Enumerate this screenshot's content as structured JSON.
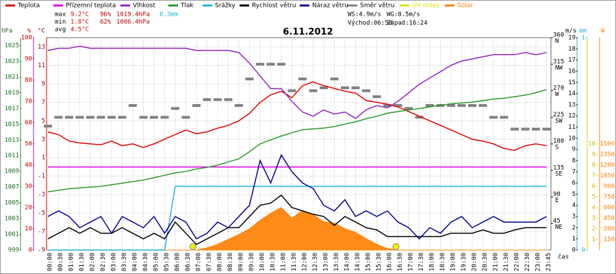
{
  "chart_data": {
    "type": "line",
    "title": "6.11.2012",
    "x_label": "čas",
    "categories": [
      "00:00",
      "00:30",
      "01:00",
      "01:30",
      "02:00",
      "02:30",
      "03:00",
      "03:30",
      "04:00",
      "04:30",
      "05:00",
      "05:30",
      "06:00",
      "06:30",
      "07:00",
      "07:30",
      "08:00",
      "08:30",
      "09:00",
      "09:30",
      "10:00",
      "10:30",
      "11:00",
      "11:30",
      "12:00",
      "12:30",
      "13:00",
      "13:30",
      "14:00",
      "14:30",
      "15:00",
      "15:30",
      "16:00",
      "16:30",
      "17:00",
      "17:30",
      "18:00",
      "18:30",
      "19:00",
      "19:30",
      "20:00",
      "20:30",
      "21:00",
      "21:30",
      "22:00",
      "22:30",
      "23:00",
      "23:45"
    ],
    "grid": true,
    "axes": {
      "hPa": {
        "unit": "hPa",
        "lim": [
          999,
          1026
        ],
        "ticks": [
          999,
          1001,
          1003,
          1005,
          1007,
          1009,
          1011,
          1013,
          1015,
          1017,
          1019,
          1021,
          1023,
          1025
        ]
      },
      "pct": {
        "unit": "%",
        "lim": [
          0,
          100
        ],
        "ticks": [
          0,
          10,
          20,
          30,
          40,
          50,
          60,
          70,
          80,
          90,
          100
        ]
      },
      "temp": {
        "unit": "°C",
        "lim": [
          -9,
          14
        ],
        "ticks": [
          -9,
          -7,
          -5,
          -3,
          -1,
          1,
          3,
          5,
          7,
          9,
          11,
          13
        ]
      },
      "dir": {
        "lim": [
          0,
          360
        ],
        "ticks": [
          45,
          90,
          135,
          180,
          225,
          270,
          315,
          360
        ],
        "compass": [
          "NE",
          "E",
          "SE",
          "S",
          "SW",
          "W",
          "NW",
          "N"
        ]
      },
      "wind": {
        "unit": "m/s",
        "lim": [
          0,
          19
        ],
        "ticks": [
          0,
          1,
          2,
          3,
          4,
          5,
          6,
          7,
          8,
          9,
          10,
          11,
          12,
          13,
          14,
          15,
          16,
          17,
          18,
          19
        ]
      },
      "rain": {
        "unit": "mm",
        "lim": [
          0,
          1
        ],
        "ticks": [
          0,
          1
        ]
      },
      "uv": {
        "lim": [
          0,
          20
        ],
        "ticks": [
          1,
          2,
          3,
          4,
          5,
          6,
          7,
          8,
          9,
          10
        ]
      },
      "solar": {
        "unit": "W",
        "lim": [
          0,
          3000
        ],
        "ticks": [
          150,
          300,
          450,
          600,
          750,
          900,
          1050,
          1200,
          1350,
          1500
        ]
      }
    },
    "series": [
      {
        "name": "Teplota",
        "color": "#e00000",
        "axis": "temp",
        "style": "line",
        "values": [
          3.8,
          3.5,
          2.8,
          2.6,
          2.5,
          2.4,
          2.8,
          2.3,
          2.5,
          2.1,
          2.5,
          3.0,
          3.5,
          4.0,
          3.6,
          3.8,
          4.2,
          4.5,
          5.0,
          5.8,
          7.0,
          7.8,
          8.2,
          7.5,
          8.8,
          9.2,
          8.8,
          8.5,
          8.2,
          8.0,
          7.2,
          7.0,
          6.8,
          6.5,
          6.0,
          5.5,
          5.0,
          4.5,
          4.0,
          3.5,
          3.0,
          2.8,
          2.5,
          2.0,
          1.8,
          2.3,
          2.5,
          2.3
        ]
      },
      {
        "name": "Přízemní teplota",
        "color": "#e000e0",
        "axis": "temp",
        "style": "line",
        "values": [
          0,
          0,
          0,
          0,
          0,
          0,
          0,
          0,
          0,
          0,
          0,
          0,
          0,
          0,
          0,
          0,
          0,
          0,
          0,
          0,
          0,
          0,
          0,
          0,
          0,
          0,
          0,
          0,
          0,
          0,
          0,
          0,
          0,
          0,
          0,
          0,
          0,
          0,
          0,
          0,
          0,
          0,
          0,
          0,
          0,
          0,
          0,
          0
        ]
      },
      {
        "name": "Vlhkost",
        "color": "#9020c0",
        "axis": "pct",
        "style": "line",
        "values": [
          94,
          95,
          95,
          96,
          95,
          95,
          95,
          95,
          95,
          95,
          95,
          95,
          95,
          95,
          94,
          94,
          94,
          94,
          93,
          88,
          82,
          76,
          76,
          70,
          65,
          63,
          66,
          64,
          65,
          62,
          66,
          68,
          67,
          70,
          74,
          78,
          81,
          84,
          87,
          89,
          90,
          91,
          92,
          92,
          92,
          93,
          92,
          93
        ]
      },
      {
        "name": "Tlak",
        "color": "#2a9a2a",
        "axis": "hPa",
        "style": "line",
        "values": [
          1006.4,
          1006.6,
          1006.8,
          1006.9,
          1007.0,
          1007.1,
          1007.3,
          1007.5,
          1007.7,
          1007.9,
          1008.2,
          1008.5,
          1008.8,
          1009.0,
          1009.3,
          1009.5,
          1009.8,
          1010.2,
          1010.6,
          1011.5,
          1012.5,
          1013.0,
          1013.5,
          1013.9,
          1014.3,
          1014.4,
          1014.5,
          1014.7,
          1015.0,
          1015.3,
          1015.7,
          1016.0,
          1016.4,
          1016.6,
          1016.8,
          1017.0,
          1017.2,
          1017.4,
          1017.6,
          1017.7,
          1017.8,
          1018.0,
          1018.2,
          1018.3,
          1018.5,
          1018.7,
          1019.0,
          1019.4
        ]
      },
      {
        "name": "Srážky",
        "color": "#20b0e0",
        "axis": "rain",
        "style": "line",
        "values": [
          0,
          0,
          0,
          0,
          0,
          0,
          0,
          0,
          0,
          0,
          0,
          0,
          0.3,
          0.3,
          0.3,
          0.3,
          0.3,
          0.3,
          0.3,
          0.3,
          0.3,
          0.3,
          0.3,
          0.3,
          0.3,
          0.3,
          0.3,
          0.3,
          0.3,
          0.3,
          0.3,
          0.3,
          0.3,
          0.3,
          0.3,
          0.3,
          0.3,
          0.3,
          0.3,
          0.3,
          0.3,
          0.3,
          0.3,
          0.3,
          0.3,
          0.3,
          0.3,
          0.3
        ]
      },
      {
        "name": "Rychlost větru",
        "color": "#000000",
        "axis": "wind",
        "style": "line",
        "values": [
          1,
          1.5,
          2,
          1.5,
          2,
          1.5,
          1.5,
          2,
          1.5,
          1,
          1.5,
          1,
          2.5,
          1.5,
          0.5,
          1,
          1.5,
          2,
          2,
          3,
          4,
          4.2,
          4.9,
          3.8,
          3.5,
          3.2,
          3.0,
          2.2,
          3.0,
          2.5,
          2.0,
          1.8,
          1.2,
          1.2,
          1.2,
          1.2,
          1.2,
          1.2,
          1.5,
          1.5,
          1.5,
          1.8,
          1.5,
          1.5,
          1.8,
          2,
          2,
          2
        ]
      },
      {
        "name": "Náraz větru",
        "color": "#000090",
        "axis": "wind",
        "style": "line",
        "values": [
          3,
          3.5,
          3,
          2,
          2.5,
          3,
          1.5,
          3,
          2.5,
          2,
          3,
          1.5,
          3,
          2.5,
          1,
          1.5,
          2.5,
          2,
          3,
          4,
          8,
          6,
          8.5,
          7,
          6,
          5.5,
          4,
          3.5,
          4.5,
          3,
          3.5,
          3,
          3.5,
          2.5,
          2,
          1,
          2,
          1.5,
          2.5,
          3,
          2,
          2.5,
          3,
          2.5,
          2.5,
          2.5,
          2.5,
          3
        ]
      },
      {
        "name": "Směr větru",
        "color": "#808080",
        "axis": "dir",
        "style": "dash",
        "values": [
          210,
          225,
          225,
          225,
          225,
          225,
          225,
          225,
          245,
          225,
          225,
          225,
          240,
          225,
          245,
          255,
          255,
          255,
          245,
          290,
          315,
          315,
          315,
          270,
          290,
          270,
          275,
          290,
          275,
          275,
          270,
          260,
          245,
          245,
          240,
          225,
          245,
          245,
          245,
          245,
          245,
          245,
          225,
          225,
          205,
          205,
          205,
          205
        ]
      },
      {
        "name": "UV index",
        "color": "#e0e000",
        "axis": "uv",
        "style": "line",
        "values": [
          null,
          null,
          null,
          null,
          null,
          null,
          null,
          null,
          null,
          null,
          null,
          null,
          null,
          null,
          null,
          null,
          null,
          null,
          null,
          null,
          null,
          null,
          null,
          null,
          null,
          null,
          null,
          null,
          null,
          null,
          null,
          null,
          null,
          null,
          null,
          null,
          null,
          null,
          null,
          null,
          null,
          null,
          null,
          null,
          null,
          null,
          null,
          null
        ]
      },
      {
        "name": "Solar",
        "color": "#ff8000",
        "axis": "solar",
        "style": "area",
        "values": [
          0,
          0,
          0,
          0,
          0,
          0,
          0,
          0,
          0,
          0,
          0,
          0,
          0,
          0,
          0,
          30,
          80,
          150,
          220,
          300,
          420,
          520,
          600,
          450,
          560,
          500,
          400,
          380,
          300,
          250,
          160,
          80,
          20,
          0,
          0,
          0,
          0,
          0,
          0,
          0,
          0,
          0,
          0,
          0,
          0,
          0,
          0,
          0
        ]
      }
    ],
    "stats": [
      {
        "label": "max",
        "values": [
          "9.2°C",
          "96%",
          "1019.4hPa",
          "0.3mm"
        ]
      },
      {
        "label": "min",
        "values": [
          "1.8°C",
          "62%",
          "1006.4hPa"
        ]
      },
      {
        "label": "avg",
        "values": [
          "4.5°C"
        ]
      }
    ],
    "wind_speed": "WS:4.9m/s",
    "wind_gust": "WG:8.5m/s",
    "sunrise": {
      "label": "Východ:",
      "time": "06:50"
    },
    "sunset": {
      "label": "Západ:",
      "time": "16:24"
    }
  }
}
